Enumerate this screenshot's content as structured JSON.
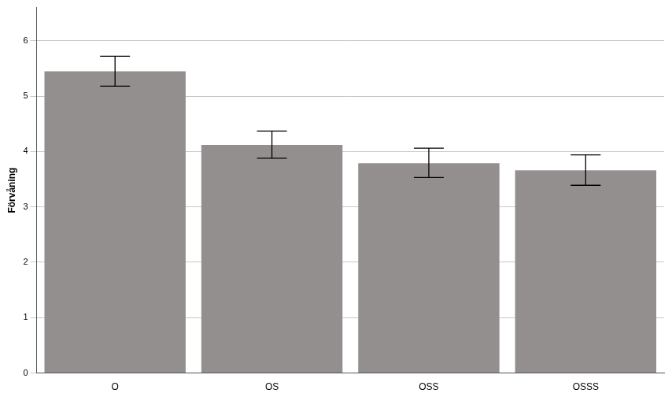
{
  "chart_data": {
    "type": "bar",
    "y_label": "Förvåning",
    "categories": [
      "O",
      "OS",
      "OSS",
      "OSSS"
    ],
    "values": [
      5.45,
      4.12,
      3.79,
      3.66
    ],
    "error_low": [
      5.18,
      3.88,
      3.53,
      3.39
    ],
    "error_high": [
      5.72,
      4.37,
      4.06,
      3.94
    ],
    "color": "#948f8f",
    "ylim": [
      0,
      6.6
    ],
    "yticks": [
      0,
      1,
      2,
      3,
      4,
      5,
      6
    ],
    "grid": true
  }
}
